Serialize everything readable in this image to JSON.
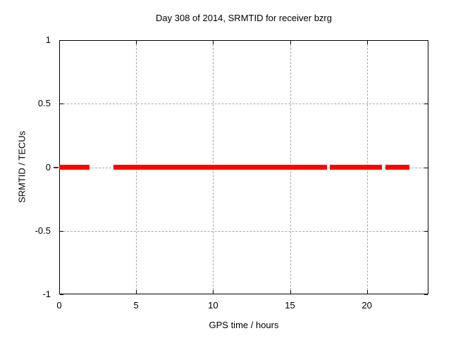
{
  "chart_data": {
    "type": "line",
    "title": "Day 308 of 2014, SRMTID for receiver bzrg",
    "xlabel": "GPS time / hours",
    "ylabel": "SRMTID / TECUs",
    "xlim": [
      0,
      24
    ],
    "ylim": [
      -1,
      1
    ],
    "grid": true,
    "legend": "none",
    "xticks": [
      {
        "value": 0,
        "label": "0"
      },
      {
        "value": 5,
        "label": "5"
      },
      {
        "value": 10,
        "label": "10"
      },
      {
        "value": 15,
        "label": "15"
      },
      {
        "value": 20,
        "label": "20"
      }
    ],
    "yticks": [
      {
        "value": -1,
        "label": "-1"
      },
      {
        "value": -0.5,
        "label": "-0.5"
      },
      {
        "value": 0,
        "label": "0"
      },
      {
        "value": 0.5,
        "label": "0.5"
      },
      {
        "value": 1,
        "label": "1"
      }
    ],
    "series": [
      {
        "name": "SRMTID",
        "style": "horizontal-segments",
        "y_value": 0,
        "segments_x_hours": [
          [
            0,
            1.97
          ],
          [
            3.52,
            17.42
          ],
          [
            17.6,
            20.98
          ],
          [
            21.21,
            22.77
          ]
        ],
        "color": "#ff0000",
        "thickness_px": 7
      }
    ],
    "colors": {
      "line": "#ff0000",
      "grid": "#a8a8a8",
      "axis": "#000000",
      "background": "#ffffff",
      "text": "#000000"
    }
  }
}
